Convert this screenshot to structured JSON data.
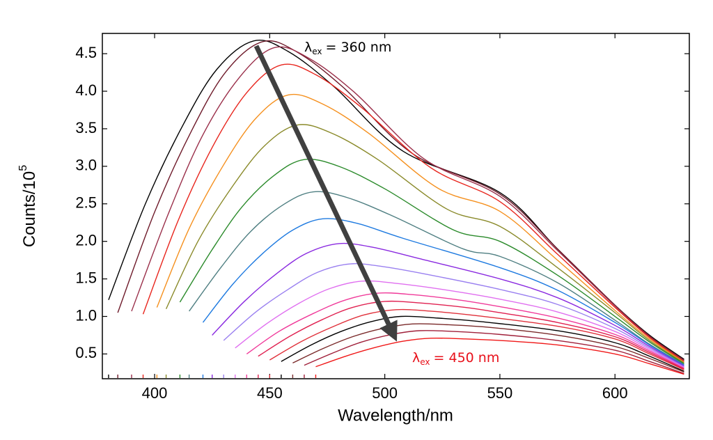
{
  "chart_data": {
    "type": "line",
    "xlabel": "Wavelength/nm",
    "ylabel": {
      "text": "Counts/10",
      "superscript": "5"
    },
    "xlim": [
      377.3,
      632.3
    ],
    "ylim": [
      0.17,
      4.77
    ],
    "xticks": [
      400,
      450,
      500,
      550,
      600
    ],
    "yticks": [
      0.5,
      {
        "value": 1,
        "label": "1.0"
      },
      1.5,
      {
        "value": 2,
        "label": "2.0"
      },
      2.5,
      {
        "value": 3,
        "label": "3.0"
      },
      3.5,
      {
        "value": 4,
        "label": "4.0"
      },
      4.5
    ],
    "grid": false,
    "annotations": [
      {
        "symbol": "λ",
        "subscript": "ex",
        "text": "= 360 nm",
        "color": "#000000"
      },
      {
        "symbol": "λ",
        "subscript": "ex",
        "text": "= 450 nm",
        "color": "#e8101a"
      }
    ],
    "series": [
      {
        "color": "#000000",
        "x": [
          380,
          396,
          412,
          427,
          443,
          458,
          478,
          508,
          550,
          575,
          600,
          615,
          630
        ],
        "values": [
          1.22,
          2.5,
          3.53,
          4.29,
          4.67,
          4.53,
          4.06,
          3.2,
          2.65,
          1.9,
          1.15,
          0.75,
          0.43
        ]
      },
      {
        "color": "#6e1a2a",
        "x": [
          384,
          400,
          416,
          431,
          447,
          462,
          482,
          512,
          550,
          575,
          600,
          615,
          630
        ],
        "values": [
          1.05,
          2.39,
          3.47,
          4.26,
          4.66,
          4.52,
          4.05,
          3.17,
          2.63,
          1.9,
          1.15,
          0.74,
          0.42
        ]
      },
      {
        "color": "#9a2f4a",
        "x": [
          390,
          406,
          421,
          437,
          452,
          467,
          487,
          517,
          550,
          575,
          600,
          615,
          630
        ],
        "values": [
          1.07,
          2.37,
          3.42,
          4.19,
          4.58,
          4.44,
          3.98,
          3.1,
          2.6,
          1.88,
          1.14,
          0.73,
          0.41
        ]
      },
      {
        "color": "#e8251d",
        "x": [
          395,
          410,
          425,
          440,
          455,
          470,
          490,
          520,
          550,
          575,
          600,
          615,
          630
        ],
        "values": [
          1.03,
          2.26,
          3.25,
          3.98,
          4.35,
          4.22,
          3.78,
          2.98,
          2.53,
          1.83,
          1.12,
          0.72,
          0.4
        ]
      },
      {
        "color": "#f5901e",
        "x": [
          401,
          415,
          430,
          444,
          458,
          473,
          493,
          523,
          550,
          575,
          600,
          615,
          630
        ],
        "values": [
          1.12,
          2.17,
          3.02,
          3.64,
          3.95,
          3.83,
          3.44,
          2.71,
          2.4,
          1.75,
          1.08,
          0.7,
          0.39
        ]
      },
      {
        "color": "#8a8a2a",
        "x": [
          405,
          419,
          434,
          448,
          462,
          477,
          497,
          527,
          550,
          575,
          600,
          615,
          630
        ],
        "values": [
          1.1,
          2.01,
          2.74,
          3.28,
          3.55,
          3.44,
          3.09,
          2.43,
          2.2,
          1.65,
          1.05,
          0.68,
          0.38
        ]
      },
      {
        "color": "#2a8a2a",
        "x": [
          411,
          425,
          438,
          452,
          465,
          480,
          500,
          530,
          550,
          575,
          600,
          615,
          630
        ],
        "values": [
          1.19,
          1.89,
          2.46,
          2.88,
          3.09,
          3.0,
          2.7,
          2.15,
          2.0,
          1.55,
          1.0,
          0.66,
          0.37
        ]
      },
      {
        "color": "#4f7f82",
        "x": [
          415,
          429,
          442,
          456,
          469,
          484,
          504,
          534,
          550,
          575,
          600,
          615,
          630
        ],
        "values": [
          1.07,
          1.66,
          2.14,
          2.49,
          2.66,
          2.58,
          2.33,
          1.9,
          1.8,
          1.45,
          0.95,
          0.63,
          0.36
        ]
      },
      {
        "color": "#1e7ae0",
        "x": [
          421,
          434,
          447,
          460,
          473,
          488,
          508,
          550,
          575,
          600,
          615,
          630
        ],
        "values": [
          0.92,
          1.43,
          1.84,
          2.15,
          2.3,
          2.24,
          2.04,
          1.65,
          1.35,
          0.92,
          0.62,
          0.35
        ]
      },
      {
        "color": "#8a2ae0",
        "x": [
          425,
          439,
          453,
          466,
          480,
          495,
          515,
          550,
          575,
          600,
          615,
          630
        ],
        "values": [
          0.75,
          1.2,
          1.57,
          1.84,
          1.97,
          1.92,
          1.77,
          1.5,
          1.25,
          0.88,
          0.6,
          0.34
        ]
      },
      {
        "color": "#9a80f0",
        "x": [
          430,
          444,
          458,
          471,
          485,
          500,
          520,
          550,
          575,
          600,
          615,
          630
        ],
        "values": [
          0.68,
          1.06,
          1.36,
          1.59,
          1.7,
          1.66,
          1.55,
          1.36,
          1.16,
          0.84,
          0.58,
          0.33
        ]
      },
      {
        "color": "#e070f0",
        "x": [
          435,
          449,
          463,
          476,
          490,
          505,
          525,
          550,
          575,
          600,
          615,
          630
        ],
        "values": [
          0.58,
          0.91,
          1.18,
          1.37,
          1.47,
          1.44,
          1.36,
          1.23,
          1.06,
          0.8,
          0.56,
          0.32
        ]
      },
      {
        "color": "#f03a9a",
        "x": [
          440,
          454,
          469,
          483,
          497,
          512,
          532,
          550,
          575,
          600,
          615,
          630
        ],
        "values": [
          0.5,
          0.8,
          1.04,
          1.22,
          1.31,
          1.29,
          1.22,
          1.13,
          0.98,
          0.76,
          0.54,
          0.31
        ]
      },
      {
        "color": "#e02050",
        "x": [
          445,
          459,
          473,
          486,
          500,
          515,
          535,
          550,
          575,
          600,
          615,
          630
        ],
        "values": [
          0.47,
          0.74,
          0.96,
          1.12,
          1.2,
          1.18,
          1.12,
          1.05,
          0.92,
          0.73,
          0.52,
          0.3
        ]
      },
      {
        "color": "#e0303a",
        "x": [
          450,
          464,
          478,
          491,
          505,
          520,
          540,
          575,
          600,
          615,
          630
        ],
        "values": [
          0.42,
          0.67,
          0.87,
          1.02,
          1.09,
          1.07,
          1.01,
          0.87,
          0.7,
          0.5,
          0.29
        ]
      },
      {
        "color": "#000000",
        "x": [
          455,
          468,
          481,
          494,
          507,
          522,
          542,
          575,
          600,
          615,
          630
        ],
        "values": [
          0.4,
          0.62,
          0.8,
          0.93,
          1.0,
          0.98,
          0.93,
          0.81,
          0.65,
          0.47,
          0.27
        ]
      },
      {
        "color": "#7a2a2a",
        "x": [
          460,
          473,
          486,
          499,
          512,
          527,
          547,
          575,
          600,
          615,
          630
        ],
        "values": [
          0.38,
          0.57,
          0.73,
          0.84,
          0.9,
          0.89,
          0.85,
          0.75,
          0.6,
          0.44,
          0.26
        ]
      },
      {
        "color": "#a0203a",
        "x": [
          465,
          478,
          490,
          503,
          515,
          530,
          550,
          575,
          600,
          615,
          630
        ],
        "values": [
          0.35,
          0.52,
          0.66,
          0.76,
          0.81,
          0.8,
          0.76,
          0.68,
          0.55,
          0.4,
          0.24
        ]
      },
      {
        "color": "#f01818",
        "x": [
          470,
          483,
          495,
          508,
          520,
          535,
          555,
          575,
          600,
          615,
          630
        ],
        "values": [
          0.33,
          0.47,
          0.58,
          0.67,
          0.71,
          0.7,
          0.67,
          0.62,
          0.5,
          0.37,
          0.23
        ]
      }
    ]
  }
}
